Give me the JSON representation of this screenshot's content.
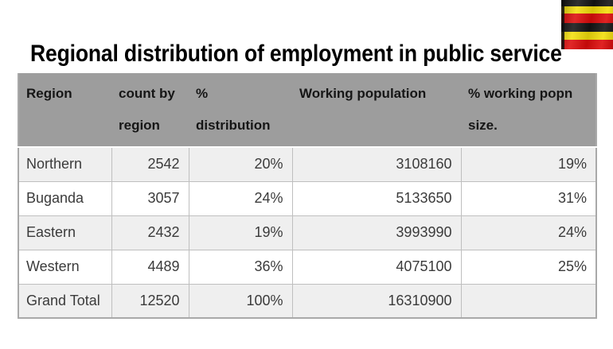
{
  "page": {
    "title": "Regional distribution of employment in public service",
    "background": "#ffffff"
  },
  "flag": {
    "name": "uganda-flag",
    "stripe_colors": [
      "#141414",
      "#f3de0c",
      "#dd0b0b",
      "#141414",
      "#f3de0c",
      "#dd0b0b"
    ]
  },
  "table": {
    "headers": [
      "Region",
      "count by region",
      "% distribution",
      "Working population",
      "% working popn size."
    ],
    "rows": [
      [
        "Northern",
        "2542",
        "20%",
        "3108160",
        "19%"
      ],
      [
        "Buganda",
        "3057",
        "24%",
        "5133650",
        "31%"
      ],
      [
        "Eastern",
        "2432",
        "19%",
        "3993990",
        "24%"
      ],
      [
        "Western",
        "4489",
        "36%",
        "4075100",
        "25%"
      ],
      [
        "Grand Total",
        "12520",
        "100%",
        "16310900",
        ""
      ]
    ],
    "colors": {
      "header_bg": "#9d9d9d",
      "header_text": "#161616",
      "row_bg": "#ffffff",
      "row_alt_bg": "#efefef",
      "cell_text": "#3b3b3b",
      "cell_border": "#bfbfbf",
      "outer_border": "#a9a9a9"
    }
  }
}
